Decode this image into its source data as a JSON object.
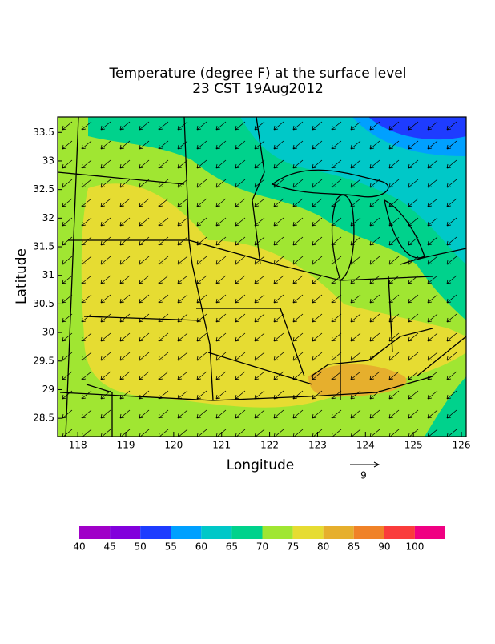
{
  "chart_data": {
    "type": "contour_map",
    "title": "Temperature (degree F) at the surface level",
    "subtitle": "23 CST 19Aug2012",
    "x_label": "Longitude",
    "y_label": "Latitude",
    "xlim": [
      117.58,
      126.1
    ],
    "xticks": [
      118,
      119,
      120,
      121,
      122,
      123,
      124,
      125,
      126
    ],
    "ylim": [
      28.18,
      33.77
    ],
    "yticks": [
      28.5,
      29,
      29.5,
      30,
      30.5,
      31,
      31.5,
      32,
      32.5,
      33,
      33.5
    ],
    "reference_vector": 9,
    "colorbar": {
      "labels": [
        40,
        45,
        50,
        55,
        60,
        65,
        70,
        75,
        80,
        85,
        90,
        100
      ],
      "colors": [
        "#a000c8",
        "#8200dc",
        "#1e3cff",
        "#00a0ff",
        "#00c8c8",
        "#00d28c",
        "#a0e632",
        "#e6dc32",
        "#e6af2d",
        "#f08228",
        "#fa3c3c",
        "#f00082"
      ]
    }
  }
}
